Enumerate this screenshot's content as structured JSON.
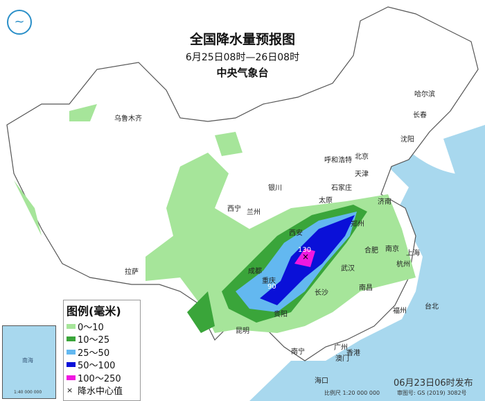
{
  "header": {
    "title": "全国降水量预报图",
    "period": "6月25日08时—26日08时",
    "issuer": "中央气象台"
  },
  "legend": {
    "title": "图例(毫米)",
    "items": [
      {
        "label": "0～10",
        "color": "#a6e59a"
      },
      {
        "label": "10～25",
        "color": "#3aa53a"
      },
      {
        "label": "25～50",
        "color": "#63b8f0"
      },
      {
        "label": "50～100",
        "color": "#0a10d8"
      },
      {
        "label": "100～250",
        "color": "#f018e0"
      }
    ],
    "center_label": "降水中心值",
    "center_symbol": "×"
  },
  "centers": [
    {
      "value": "130"
    },
    {
      "value": "90"
    }
  ],
  "cities": [
    "乌鲁木齐",
    "哈尔滨",
    "长春",
    "沈阳",
    "北京",
    "天津",
    "呼和浩特",
    "石家庄",
    "太原",
    "济南",
    "银川",
    "西宁",
    "兰州",
    "郑州",
    "西安",
    "合肥",
    "南京",
    "上海",
    "武汉",
    "杭州",
    "成都",
    "重庆",
    "拉萨",
    "长沙",
    "南昌",
    "福州",
    "台北",
    "贵阳",
    "昆明",
    "南宁",
    "广州",
    "澳门",
    "香港",
    "海口"
  ],
  "inset": {
    "sea": "南海",
    "scale": "1:40 000 000"
  },
  "footer": {
    "issued": "06月23日06时发布",
    "scale": "比例尺 1:20 000 000",
    "map_no": "审图号: GS (2019) 3082号"
  },
  "colors": {
    "sea": "#a8d8ee",
    "land": "#ffffff",
    "border": "#555555"
  }
}
